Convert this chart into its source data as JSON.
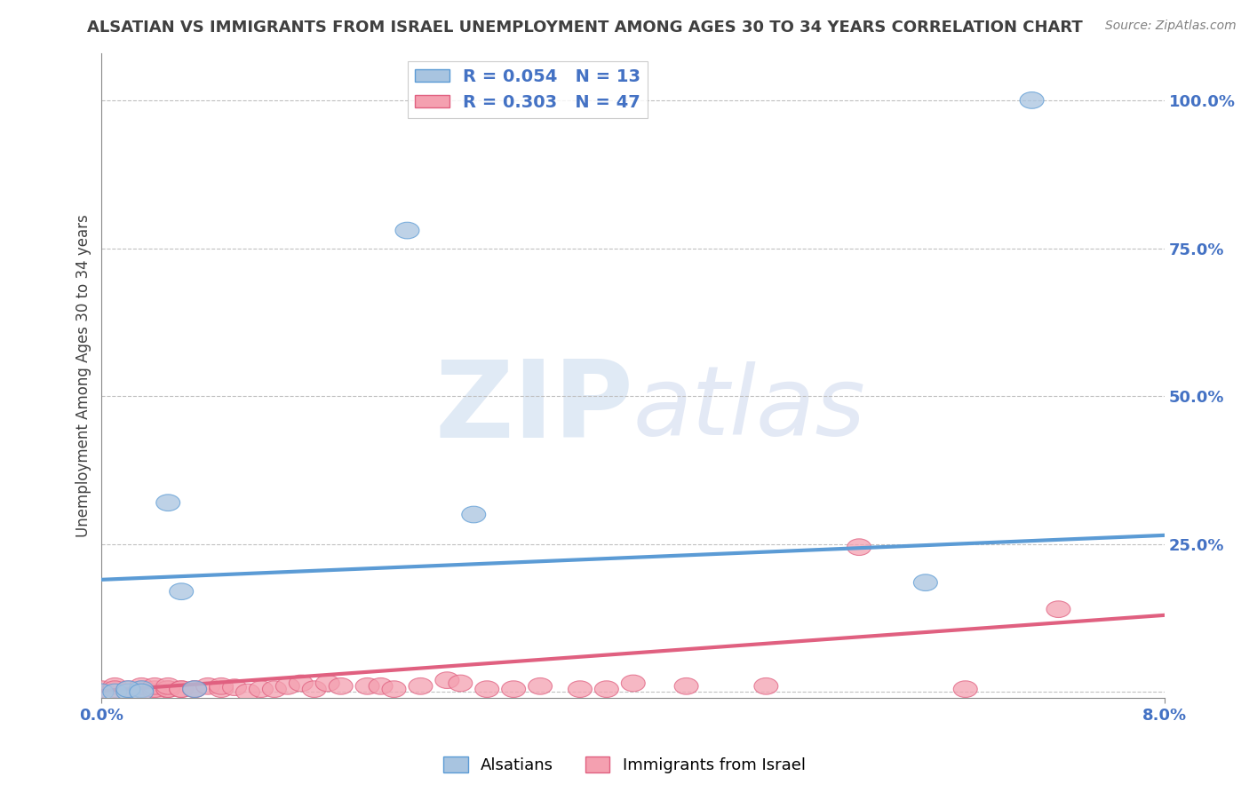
{
  "title": "ALSATIAN VS IMMIGRANTS FROM ISRAEL UNEMPLOYMENT AMONG AGES 30 TO 34 YEARS CORRELATION CHART",
  "source": "Source: ZipAtlas.com",
  "ylabel": "Unemployment Among Ages 30 to 34 years",
  "xlim": [
    0.0,
    0.08
  ],
  "ylim": [
    -0.01,
    1.08
  ],
  "xticks": [
    0.0,
    0.08
  ],
  "xticklabels": [
    "0.0%",
    "8.0%"
  ],
  "yticks_right": [
    0.25,
    0.5,
    0.75,
    1.0
  ],
  "yticklabels_right": [
    "25.0%",
    "50.0%",
    "75.0%",
    "100.0%"
  ],
  "grid_yticks": [
    0.0,
    0.25,
    0.5,
    0.75,
    1.0
  ],
  "blue_R": 0.054,
  "blue_N": 13,
  "pink_R": 0.303,
  "pink_N": 47,
  "blue_color": "#a8c4e0",
  "pink_color": "#f4a0b0",
  "blue_line_color": "#5b9bd5",
  "pink_line_color": "#e06080",
  "legend_text_color": "#4472c4",
  "watermark_zip": "ZIP",
  "watermark_atlas": "atlas",
  "watermark_color_zip": "#c8d8f0",
  "watermark_color_atlas": "#c8d0e8",
  "background_color": "#ffffff",
  "grid_color": "#c0c0c0",
  "title_color": "#404040",
  "blue_scatter_x": [
    0.023,
    0.0,
    0.001,
    0.002,
    0.003,
    0.006,
    0.002,
    0.005,
    0.003,
    0.007,
    0.062,
    0.028,
    0.07
  ],
  "blue_scatter_y": [
    0.78,
    0.0,
    0.0,
    0.0,
    0.005,
    0.17,
    0.005,
    0.32,
    0.0,
    0.005,
    0.185,
    0.3,
    1.0
  ],
  "pink_scatter_x": [
    0.0,
    0.001,
    0.001,
    0.002,
    0.002,
    0.003,
    0.003,
    0.003,
    0.004,
    0.004,
    0.004,
    0.005,
    0.005,
    0.005,
    0.006,
    0.006,
    0.007,
    0.007,
    0.008,
    0.009,
    0.009,
    0.01,
    0.011,
    0.012,
    0.013,
    0.014,
    0.015,
    0.016,
    0.017,
    0.018,
    0.02,
    0.021,
    0.022,
    0.024,
    0.026,
    0.027,
    0.029,
    0.031,
    0.033,
    0.036,
    0.038,
    0.04,
    0.044,
    0.05,
    0.057,
    0.065,
    0.072
  ],
  "pink_scatter_y": [
    0.005,
    0.01,
    0.005,
    0.0,
    0.005,
    0.0,
    0.005,
    0.01,
    0.0,
    0.005,
    0.01,
    0.005,
    0.005,
    0.01,
    0.005,
    0.005,
    0.005,
    0.005,
    0.01,
    0.005,
    0.01,
    0.008,
    0.0,
    0.005,
    0.005,
    0.01,
    0.015,
    0.005,
    0.015,
    0.01,
    0.01,
    0.01,
    0.005,
    0.01,
    0.02,
    0.015,
    0.005,
    0.005,
    0.01,
    0.005,
    0.005,
    0.015,
    0.01,
    0.01,
    0.245,
    0.005,
    0.14
  ],
  "blue_trendline_x": [
    0.0,
    0.08
  ],
  "blue_trendline_y": [
    0.19,
    0.265
  ],
  "pink_trendline_x": [
    0.0,
    0.08
  ],
  "pink_trendline_y": [
    0.002,
    0.13
  ]
}
